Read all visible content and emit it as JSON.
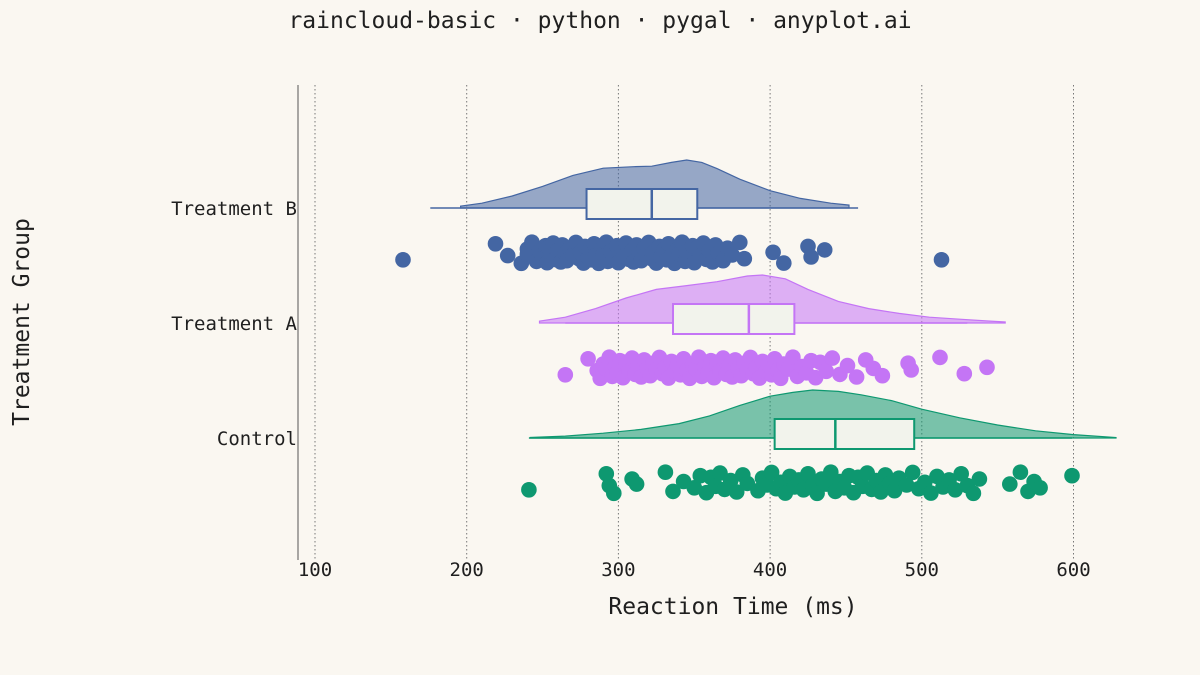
{
  "chart_data": {
    "type": "raincloud",
    "title": "raincloud-basic · python · pygal · anyplot.ai",
    "xlabel": "Reaction Time (ms)",
    "ylabel": "Treatment Group",
    "xlim": [
      90,
      640
    ],
    "xticks": [
      "100",
      "200",
      "300",
      "400",
      "500",
      "600"
    ],
    "grid": "vertical dotted",
    "groups": [
      {
        "name": "Treatment B",
        "color": "#4466A3",
        "box": {
          "whisker_low": 176,
          "q1": 279,
          "median": 322,
          "q3": 352,
          "whisker_high": 458
        },
        "density": [
          [
            196,
            0.04
          ],
          [
            210,
            0.1
          ],
          [
            230,
            0.25
          ],
          [
            250,
            0.45
          ],
          [
            270,
            0.68
          ],
          [
            290,
            0.83
          ],
          [
            310,
            0.86
          ],
          [
            322,
            0.87
          ],
          [
            335,
            0.95
          ],
          [
            345,
            1.0
          ],
          [
            355,
            0.95
          ],
          [
            365,
            0.82
          ],
          [
            380,
            0.6
          ],
          [
            400,
            0.36
          ],
          [
            420,
            0.2
          ],
          [
            440,
            0.1
          ],
          [
            452,
            0.06
          ]
        ],
        "points": [
          158,
          219,
          227,
          236,
          240,
          240,
          243,
          246,
          248,
          250,
          252,
          253,
          254,
          256,
          257,
          258,
          260,
          262,
          263,
          265,
          266,
          268,
          270,
          272,
          274,
          275,
          277,
          278,
          280,
          281,
          282,
          284,
          285,
          287,
          289,
          290,
          292,
          293,
          295,
          297,
          299,
          300,
          302,
          304,
          305,
          307,
          309,
          310,
          312,
          314,
          315,
          317,
          318,
          320,
          322,
          323,
          325,
          327,
          328,
          330,
          332,
          333,
          335,
          337,
          339,
          340,
          342,
          344,
          345,
          347,
          349,
          350,
          352,
          354,
          356,
          358,
          360,
          362,
          364,
          366,
          369,
          372,
          375,
          380,
          383,
          402,
          409,
          425,
          427,
          436,
          513
        ]
      },
      {
        "name": "Treatment A",
        "color": "#C475F5",
        "box": {
          "whisker_low": 265,
          "q1": 336,
          "median": 386,
          "q3": 416,
          "whisker_high": 530
        },
        "density": [
          [
            248,
            0.04
          ],
          [
            265,
            0.12
          ],
          [
            285,
            0.3
          ],
          [
            305,
            0.52
          ],
          [
            325,
            0.7
          ],
          [
            345,
            0.78
          ],
          [
            365,
            0.86
          ],
          [
            385,
            0.98
          ],
          [
            395,
            1.0
          ],
          [
            410,
            0.92
          ],
          [
            425,
            0.7
          ],
          [
            445,
            0.45
          ],
          [
            465,
            0.3
          ],
          [
            485,
            0.2
          ],
          [
            505,
            0.12
          ],
          [
            525,
            0.08
          ],
          [
            545,
            0.04
          ],
          [
            555,
            0.02
          ]
        ],
        "points": [
          265,
          280,
          286,
          288,
          290,
          292,
          294,
          296,
          298,
          299,
          301,
          303,
          305,
          307,
          309,
          311,
          313,
          315,
          317,
          319,
          321,
          323,
          325,
          327,
          329,
          331,
          333,
          335,
          337,
          339,
          341,
          343,
          345,
          347,
          349,
          351,
          353,
          355,
          357,
          359,
          361,
          363,
          365,
          367,
          369,
          371,
          373,
          375,
          377,
          379,
          381,
          383,
          385,
          387,
          389,
          391,
          393,
          395,
          397,
          399,
          401,
          403,
          405,
          407,
          409,
          412,
          415,
          418,
          421,
          424,
          427,
          430,
          433,
          437,
          441,
          446,
          451,
          457,
          463,
          468,
          474,
          491,
          493,
          512,
          528,
          543
        ]
      },
      {
        "name": "Control",
        "color": "#0E9870",
        "box": {
          "whisker_low": 241,
          "q1": 403,
          "median": 443,
          "q3": 495,
          "whisker_high": 599
        },
        "density": [
          [
            242,
            0.01
          ],
          [
            265,
            0.04
          ],
          [
            290,
            0.1
          ],
          [
            315,
            0.18
          ],
          [
            340,
            0.3
          ],
          [
            360,
            0.46
          ],
          [
            380,
            0.68
          ],
          [
            400,
            0.87
          ],
          [
            415,
            0.95
          ],
          [
            428,
            1.0
          ],
          [
            445,
            0.97
          ],
          [
            460,
            0.9
          ],
          [
            480,
            0.78
          ],
          [
            500,
            0.6
          ],
          [
            525,
            0.42
          ],
          [
            550,
            0.27
          ],
          [
            575,
            0.15
          ],
          [
            600,
            0.07
          ],
          [
            628,
            0.01
          ]
        ],
        "points": [
          241,
          292,
          294,
          297,
          309,
          312,
          331,
          336,
          343,
          350,
          354,
          358,
          361,
          364,
          367,
          370,
          374,
          378,
          382,
          385,
          392,
          395,
          398,
          401,
          404,
          407,
          410,
          413,
          416,
          419,
          422,
          425,
          428,
          431,
          434,
          437,
          440,
          443,
          446,
          449,
          452,
          455,
          458,
          461,
          464,
          467,
          470,
          473,
          476,
          479,
          482,
          485,
          490,
          494,
          498,
          502,
          506,
          510,
          514,
          518,
          522,
          526,
          530,
          534,
          538,
          558,
          565,
          570,
          574,
          578,
          599
        ]
      }
    ]
  }
}
